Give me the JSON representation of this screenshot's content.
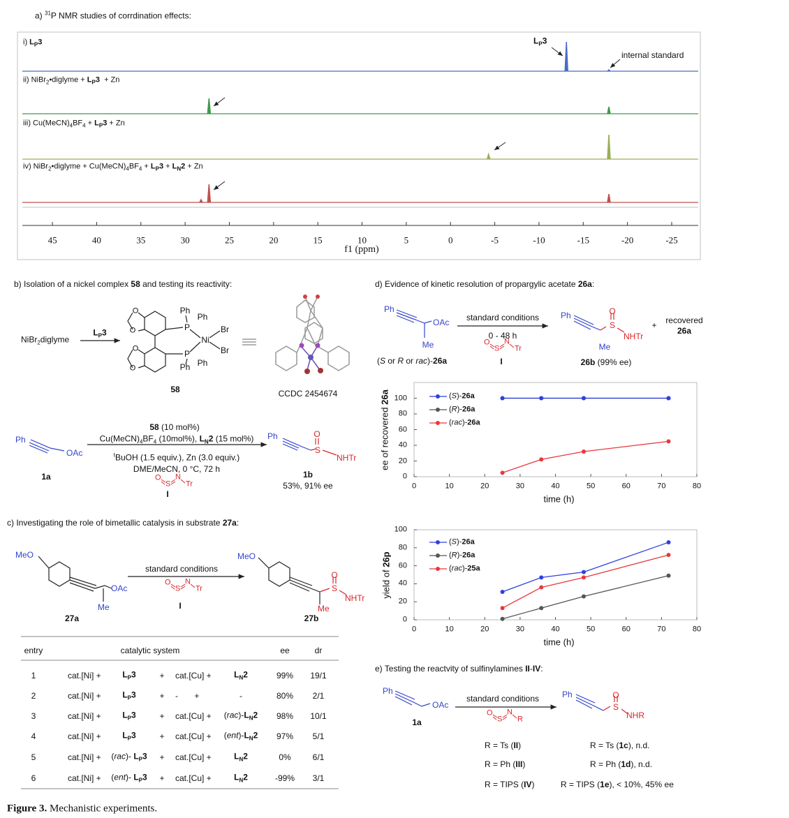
{
  "panel_a": {
    "title": "a) <sup>31</sup>P NMR studies of corrdination effects:"
  },
  "chart_data": [
    {
      "type": "spectrum",
      "xlabel": "f1 (ppm)",
      "xlim": [
        48.4,
        -28
      ],
      "xticks": [
        45,
        40,
        35,
        30,
        25,
        20,
        15,
        10,
        5,
        0,
        -5,
        -10,
        -15,
        -20,
        -25
      ],
      "series": [
        {
          "name": "i) <b>L<sub>P</sub>3</b>",
          "color": "#4a6cc4",
          "peaks": [
            [
              -13.1,
              0.84
            ],
            [
              -17.9,
              0.04
            ]
          ]
        },
        {
          "name": "ii) NiBr<sub>2</sub>•diglyme + <b>L<sub>P</sub>3</b> &nbsp;+ Zn",
          "color": "#3f9a4a",
          "peaks": [
            [
              27.3,
              0.44
            ],
            [
              -17.9,
              0.2
            ]
          ]
        },
        {
          "name": "iii) Cu(MeCN)<sub>4</sub>BF<sub>4</sub> + <b>L<sub>P</sub>3</b> + Zn",
          "color": "#9aae55",
          "peaks": [
            [
              -4.3,
              0.14
            ],
            [
              -17.9,
              0.7
            ]
          ]
        },
        {
          "name": "iv) NiBr<sub>2</sub>•diglyme + Cu(MeCN)<sub>4</sub>BF<sub>4</sub> + <b>L<sub>P</sub>3</b> + <b>L<sub>N</sub>2</b> + Zn",
          "color": "#c0504d",
          "peaks": [
            [
              27.3,
              0.52
            ],
            [
              28.2,
              0.08
            ],
            [
              -17.9,
              0.24
            ]
          ]
        }
      ],
      "annotations": [
        "<b>L<sub>P</sub>3</b>",
        "internal standard"
      ]
    },
    {
      "type": "line",
      "ylabel": "ee of recovered <b>26a</b>",
      "xlabel": "time (h)",
      "x": [
        25,
        36,
        48,
        72
      ],
      "xlim": [
        0,
        80
      ],
      "xticks": [
        0,
        10,
        20,
        30,
        40,
        50,
        60,
        70,
        80
      ],
      "ylim": [
        0,
        120
      ],
      "yticks": [
        0,
        20,
        40,
        60,
        80,
        100
      ],
      "grid": false,
      "series": [
        {
          "name": "(<i>S</i>)-<b>26a</b>",
          "color": "#2f3fe0",
          "values": [
            100,
            100,
            100,
            100
          ]
        },
        {
          "name": "(<i>R</i>)-<b>26a</b>",
          "color": "#555555",
          "values": [
            100,
            100,
            100,
            100
          ]
        },
        {
          "name": "(<i>rac</i>)-<b>26a</b>",
          "color": "#e8383d",
          "values": [
            5,
            22,
            32,
            45
          ]
        }
      ]
    },
    {
      "type": "line",
      "ylabel": "yield of <b>26p</b>",
      "xlabel": "time (h)",
      "x": [
        25,
        36,
        48,
        72
      ],
      "xlim": [
        0,
        80
      ],
      "xticks": [
        0,
        10,
        20,
        30,
        40,
        50,
        60,
        70,
        80
      ],
      "ylim": [
        0,
        100
      ],
      "yticks": [
        0,
        20,
        40,
        60,
        80,
        100
      ],
      "grid": false,
      "series": [
        {
          "name": "(<i>S</i>)-<b>26a</b>",
          "color": "#2f3fe0",
          "values": [
            31,
            47,
            53,
            86
          ]
        },
        {
          "name": "(<i>R</i>)-<b>26a</b>",
          "color": "#555555",
          "values": [
            1,
            13,
            26,
            49
          ]
        },
        {
          "name": "(<i>rac</i>)-<b>25a</b>",
          "color": "#e8383d",
          "values": [
            13,
            36,
            47,
            72
          ]
        }
      ]
    }
  ],
  "panel_b": {
    "title": "b) Isolation of a nickel complex <b>58</b> and testing its reactivity:",
    "reaction1": {
      "reactant": "NiBr<sub>2</sub>diglyme",
      "reagent": "<b>L<sub>P</sub>3</b>",
      "complex": {
        "o": [
          "O",
          "O",
          "O",
          "O"
        ],
        "ph": [
          "Ph",
          "Ph",
          "Ph",
          "Ph"
        ],
        "p": [
          "P",
          "P"
        ],
        "ni": "Ni",
        "br": [
          "Br",
          "Br"
        ],
        "label": "<b>58</b>"
      },
      "ccdc": "CCDC 2454674"
    },
    "reaction2": {
      "reactant": {
        "ph": "Ph",
        "oac": "OAc",
        "label": "<b>1a</b>"
      },
      "conditions": [
        "<b>58</b> (10 mol%)",
        "Cu(MeCN)<sub>4</sub>BF<sub>4</sub> (10mol%), <b>L<sub>N</sub>2</b> (15 mol%)",
        "<sup>t</sup>BuOH (1.5 equiv.), Zn (3.0 equiv.)",
        "DME/MeCN, 0 °C, 72 h"
      ],
      "reagent": {
        "o": "O",
        "s": "S",
        "n": "N",
        "r": "Tr",
        "label": "<b>I</b>"
      },
      "product": {
        "ph": "Ph",
        "o": "O",
        "s": "S",
        "nh": "NHTr",
        "label": "<b>1b</b>",
        "result": "53%, 91% ee"
      }
    }
  },
  "panel_c": {
    "title": "c) Investigating the role of bimetallic catalysis in substrate <b>27a</b>:",
    "reactant": {
      "meo": "MeO",
      "oac": "OAc",
      "me": "Me",
      "label": "<b>27a</b>"
    },
    "condition": "standard conditions",
    "reagent": {
      "o": "O",
      "s": "S",
      "n": "N",
      "r": "Tr",
      "label": "<b>I</b>"
    },
    "product": {
      "meo": "MeO",
      "o": "O",
      "s": "S",
      "nh": "NHTr",
      "me": "Me",
      "label": "<b>27b</b>"
    },
    "table": {
      "header": [
        "entry",
        "catalytic system",
        "ee",
        "dr"
      ],
      "rows": [
        [
          "1",
          "cat.[Ni] +",
          "<b>L<sub>P</sub>3</b>",
          "+",
          "cat.[Cu] +",
          "<b>L<sub>N</sub>2</b>",
          "99%",
          "19/1"
        ],
        [
          "2",
          "cat.[Ni] +",
          "<b>L<sub>P</sub>3</b>",
          "+",
          "-       +",
          "-",
          "80%",
          "2/1"
        ],
        [
          "3",
          "cat.[Ni] +",
          "<b>L<sub>P</sub>3</b>",
          "+",
          "cat.[Cu] +",
          "(<i>rac</i>)-<b>L<sub>N</sub>2</b>",
          "98%",
          "10/1"
        ],
        [
          "4",
          "cat.[Ni] +",
          "<b>L<sub>P</sub>3</b>",
          "+",
          "cat.[Cu] +",
          "(<i>ent</i>)-<b>L<sub>N</sub>2</b>",
          "97%",
          "5/1"
        ],
        [
          "5",
          "cat.[Ni] +",
          "(<i>rac</i>)- <b>L<sub>P</sub>3</b>",
          "+",
          "cat.[Cu] +",
          "<b>L<sub>N</sub>2</b>",
          "0%",
          "6/1"
        ],
        [
          "6",
          "cat.[Ni] +",
          "(<i>ent</i>)- <b>L<sub>P</sub>3</b>",
          "+",
          "cat.[Cu] +",
          "<b>L<sub>N</sub>2</b>",
          "-99%",
          "3/1"
        ]
      ]
    }
  },
  "panel_d": {
    "title": "d) Evidence of kinetic resolution of propargylic acetate <b>26a</b>:",
    "reactant": {
      "ph": "Ph",
      "oac": "OAc",
      "me": "Me",
      "label": "(<i>S</i> or <i>R</i> or <i>rac</i>)-<b>26a</b>"
    },
    "conditions": [
      "standard conditions",
      "0 - 48 h"
    ],
    "reagent": {
      "o": "O",
      "s": "S",
      "n": "N",
      "r": "Tr",
      "label": "<b>I</b>"
    },
    "product": {
      "ph": "Ph",
      "o": "O",
      "s": "S",
      "nh": "NHTr",
      "me": "Me",
      "label": "<b>26b</b> (99% ee)"
    },
    "plus": "+",
    "recovered": [
      "recovered",
      "<b>26a</b>"
    ]
  },
  "panel_e": {
    "title": "e) Testing the reactvity of sulfinylamines <b>II</b>-<b>IV</b>:",
    "reactant": {
      "ph": "Ph",
      "oac": "OAc",
      "label": "<b>1a</b>"
    },
    "condition": "standard conditions",
    "reagent": {
      "o": "O",
      "s": "S",
      "n": "N",
      "r": "R"
    },
    "product": {
      "ph": "Ph",
      "o": "O",
      "s": "S",
      "nh": "NHR"
    },
    "reagents": [
      "R = Ts (<b>II</b>)",
      "R = Ph (<b>III</b>)",
      "R = TIPS (<b>IV</b>)"
    ],
    "results": [
      "R = Ts (<b>1c</b>), n.d.",
      "R = Ph (<b>1d</b>), n.d.",
      "R = TIPS (<b>1e</b>), < 10%, 45% ee"
    ]
  },
  "caption": "<b>Figure 3.</b> Mechanistic experiments."
}
